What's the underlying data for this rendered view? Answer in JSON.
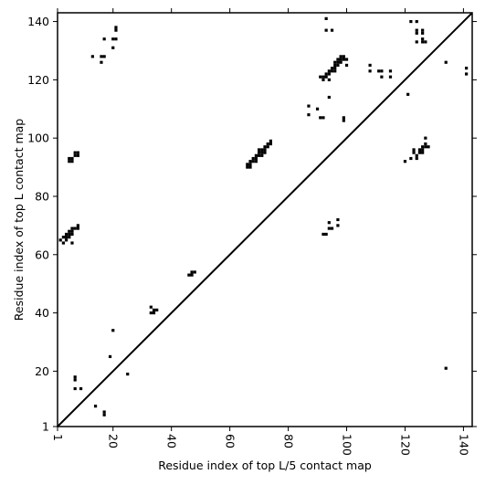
{
  "chart_data": {
    "type": "scatter",
    "xlabel": "Residue index of top L/5 contact map",
    "ylabel": "Residue index of top L contact map",
    "xlim": [
      1,
      143
    ],
    "ylim": [
      1,
      143
    ],
    "x_ticks": [
      1,
      20,
      40,
      60,
      80,
      100,
      120,
      140
    ],
    "y_ticks": [
      1,
      20,
      40,
      60,
      80,
      100,
      120,
      140
    ],
    "diagonal": true,
    "grid": false,
    "marker_color": "#000000",
    "points": [
      [
        21,
        137
      ],
      [
        21,
        138
      ],
      [
        17,
        134
      ],
      [
        20,
        134
      ],
      [
        21,
        134
      ],
      [
        13,
        128
      ],
      [
        16,
        128
      ],
      [
        17,
        128
      ],
      [
        16,
        126
      ],
      [
        20,
        131
      ],
      [
        5,
        92
      ],
      [
        5,
        93
      ],
      [
        6,
        92
      ],
      [
        6,
        93
      ],
      [
        7,
        94
      ],
      [
        7,
        95
      ],
      [
        8,
        94
      ],
      [
        8,
        95
      ],
      [
        2,
        65
      ],
      [
        3,
        64
      ],
      [
        3,
        66
      ],
      [
        4,
        65
      ],
      [
        4,
        66
      ],
      [
        4,
        67
      ],
      [
        5,
        66
      ],
      [
        5,
        67
      ],
      [
        5,
        68
      ],
      [
        6,
        67
      ],
      [
        6,
        68
      ],
      [
        6,
        69
      ],
      [
        7,
        69
      ],
      [
        8,
        69
      ],
      [
        8,
        70
      ],
      [
        6,
        64
      ],
      [
        33,
        42
      ],
      [
        33,
        40
      ],
      [
        34,
        40
      ],
      [
        34,
        41
      ],
      [
        35,
        41
      ],
      [
        46,
        53
      ],
      [
        47,
        53
      ],
      [
        48,
        54
      ],
      [
        47,
        54
      ],
      [
        20,
        34
      ],
      [
        19,
        25
      ],
      [
        25,
        19
      ],
      [
        7,
        17
      ],
      [
        7,
        18
      ],
      [
        7,
        14
      ],
      [
        9,
        14
      ],
      [
        14,
        8
      ],
      [
        17,
        5
      ],
      [
        17,
        6
      ],
      [
        66,
        90
      ],
      [
        67,
        90
      ],
      [
        66,
        91
      ],
      [
        67,
        91
      ],
      [
        67,
        92
      ],
      [
        68,
        92
      ],
      [
        68,
        93
      ],
      [
        69,
        93
      ],
      [
        69,
        94
      ],
      [
        70,
        94
      ],
      [
        70,
        95
      ],
      [
        71,
        95
      ],
      [
        71,
        96
      ],
      [
        72,
        96
      ],
      [
        72,
        97
      ],
      [
        73,
        97
      ],
      [
        73,
        98
      ],
      [
        74,
        98
      ],
      [
        74,
        99
      ],
      [
        69,
        92
      ],
      [
        70,
        96
      ],
      [
        71,
        94
      ],
      [
        72,
        95
      ],
      [
        93,
        141
      ],
      [
        93,
        137
      ],
      [
        95,
        137
      ],
      [
        92,
        120
      ],
      [
        92,
        121
      ],
      [
        93,
        121
      ],
      [
        93,
        122
      ],
      [
        94,
        122
      ],
      [
        94,
        123
      ],
      [
        95,
        123
      ],
      [
        95,
        124
      ],
      [
        96,
        124
      ],
      [
        96,
        125
      ],
      [
        97,
        125
      ],
      [
        97,
        126
      ],
      [
        98,
        126
      ],
      [
        98,
        127
      ],
      [
        99,
        127
      ],
      [
        99,
        128
      ],
      [
        100,
        127
      ],
      [
        94,
        120
      ],
      [
        91,
        121
      ],
      [
        96,
        123
      ],
      [
        97,
        127
      ],
      [
        98,
        128
      ],
      [
        96,
        126
      ],
      [
        94,
        114
      ],
      [
        100,
        125
      ],
      [
        87,
        111
      ],
      [
        87,
        108
      ],
      [
        90,
        110
      ],
      [
        91,
        107
      ],
      [
        92,
        107
      ],
      [
        99,
        106
      ],
      [
        99,
        107
      ],
      [
        108,
        125
      ],
      [
        108,
        123
      ],
      [
        111,
        123
      ],
      [
        112,
        123
      ],
      [
        112,
        121
      ],
      [
        115,
        123
      ],
      [
        115,
        121
      ],
      [
        122,
        140
      ],
      [
        124,
        140
      ],
      [
        124,
        137
      ],
      [
        124,
        136
      ],
      [
        126,
        137
      ],
      [
        126,
        136
      ],
      [
        126,
        134
      ],
      [
        126,
        133
      ],
      [
        127,
        133
      ],
      [
        124,
        133
      ],
      [
        121,
        115
      ],
      [
        134,
        126
      ],
      [
        141,
        124
      ],
      [
        141,
        122
      ],
      [
        120,
        92
      ],
      [
        122,
        93
      ],
      [
        123,
        95
      ],
      [
        124,
        93
      ],
      [
        124,
        94
      ],
      [
        125,
        95
      ],
      [
        125,
        96
      ],
      [
        126,
        95
      ],
      [
        126,
        96
      ],
      [
        126,
        97
      ],
      [
        127,
        97
      ],
      [
        127,
        98
      ],
      [
        128,
        97
      ],
      [
        127,
        100
      ],
      [
        123,
        96
      ],
      [
        92,
        67
      ],
      [
        93,
        67
      ],
      [
        94,
        71
      ],
      [
        94,
        69
      ],
      [
        95,
        69
      ],
      [
        97,
        72
      ],
      [
        97,
        70
      ],
      [
        134,
        21
      ]
    ]
  }
}
